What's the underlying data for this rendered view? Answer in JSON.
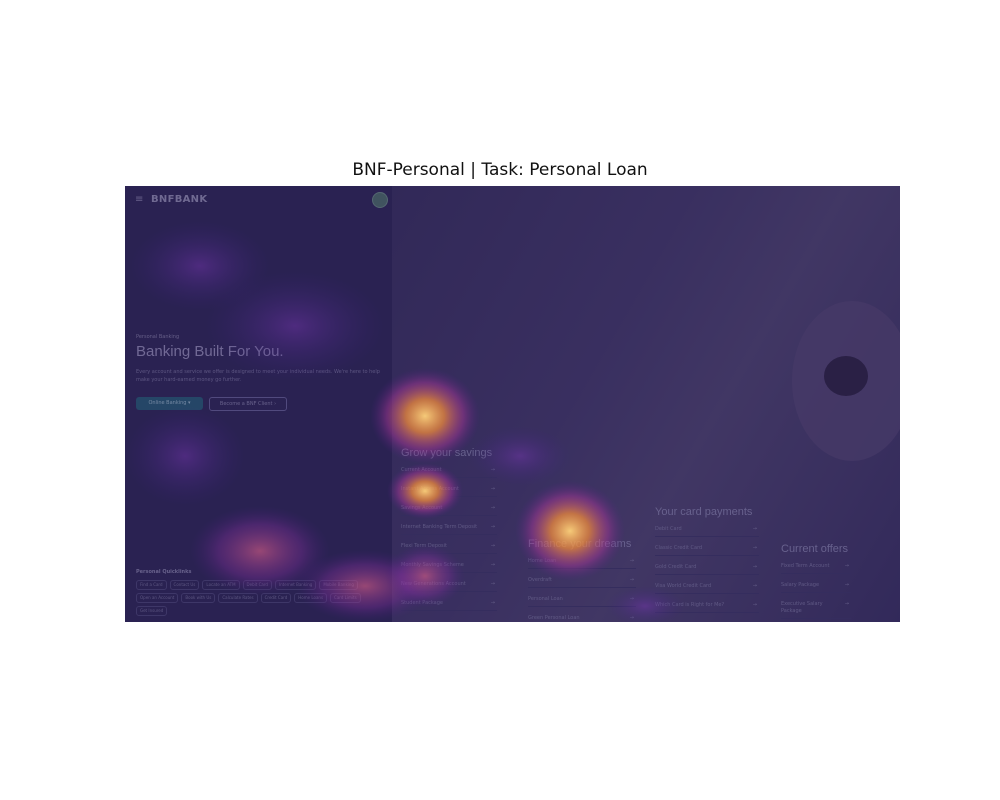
{
  "figure_title": "BNF-Personal | Task: Personal Loan",
  "site": {
    "menu_glyph": "≡",
    "logo_text": "BNFBANK",
    "kicker": "Personal Banking",
    "hero_title": "Banking Built For You.",
    "hero_desc": "Every account and service we offer is designed to meet your individual needs. We're here to help make your hard-earned money go further.",
    "primary_cta": "Online Banking",
    "secondary_cta": "Become a BNF Client",
    "quicklinks_title": "Personal Quicklinks",
    "quicklinks": [
      "Find a Card",
      "Contact Us",
      "Locate an ATM",
      "Debit Card",
      "Internet Banking",
      "Mobile Banking",
      "Open an Account",
      "Book with Us",
      "Calculate Rates",
      "Credit Card",
      "Home Loans",
      "Card Limits",
      "Get Insured"
    ]
  },
  "columns": [
    {
      "title": "Grow your savings",
      "items": [
        "Current Account",
        "Instant Access Account",
        "Savings Account",
        "Internet Banking Term Deposit",
        "Flexi Term Deposit",
        "Monthly Savings Scheme",
        "New Generations Account",
        "Student Package"
      ]
    },
    {
      "title": "Finance your dreams",
      "items": [
        "Home Loan",
        "Overdraft",
        "Personal Loan",
        "Green Personal Loan"
      ]
    },
    {
      "title": "Your card payments",
      "items": [
        "Debit Card",
        "Classic Credit Card",
        "Gold Credit Card",
        "Visa World Credit Card",
        "Which Card is Right for Me?"
      ]
    },
    {
      "title": "Current offers",
      "items": [
        "Fixed Term Account",
        "Salary Package",
        "Executive Salary Package"
      ]
    }
  ],
  "arrow_glyph": "→",
  "colors": {
    "primary_cta_bg": "#275c77",
    "panel_bg": "#2b2350",
    "heat_hot": "#ffd27a"
  }
}
